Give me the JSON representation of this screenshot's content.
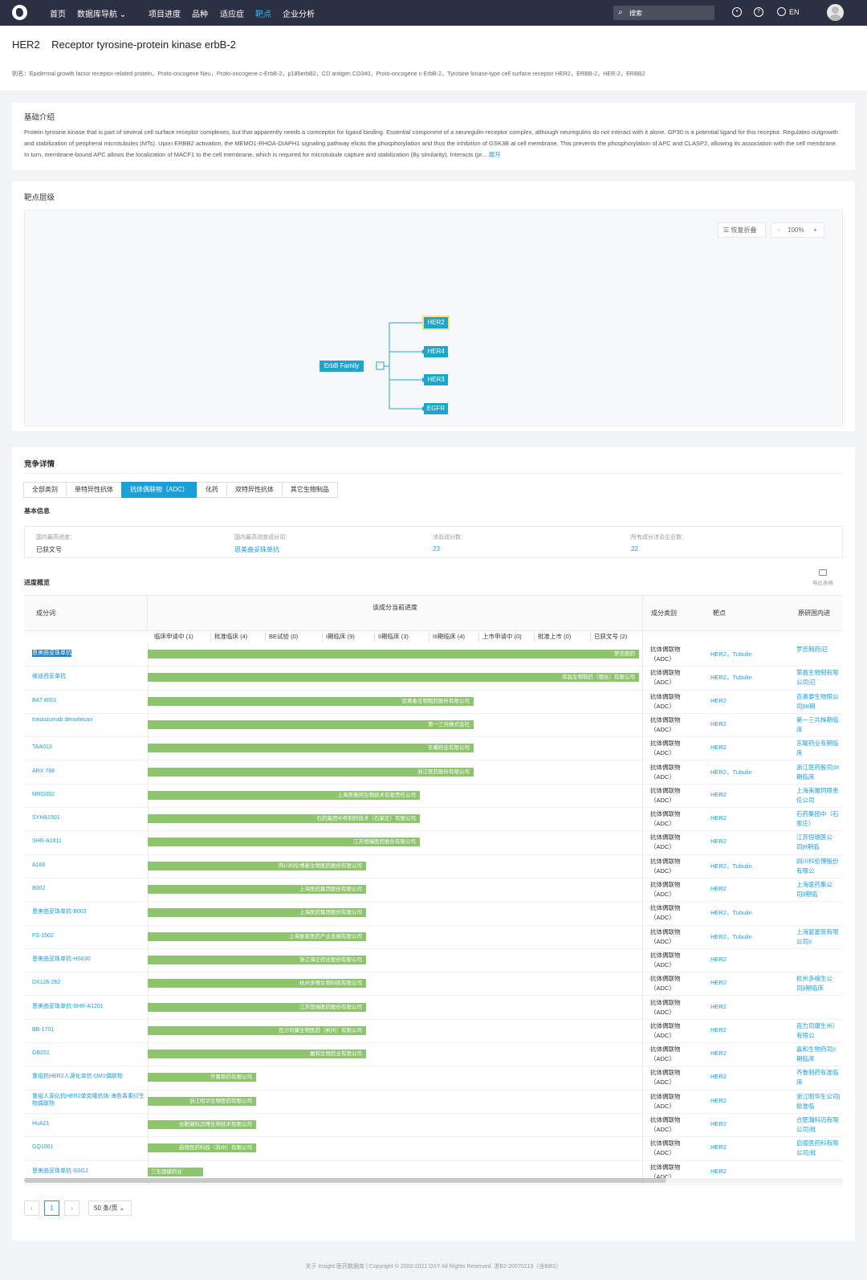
{
  "nav": {
    "items": [
      "首页",
      "数据库导航",
      "项目进度",
      "品种",
      "适应症",
      "靶点",
      "企业分析"
    ],
    "search_placeholder": "搜索",
    "lang": "EN"
  },
  "header": {
    "title": "HER2    Receptor tyrosine-protein kinase erbB-2",
    "alias": "别名：Epidermal growth factor receptor-related protein，Proto-oncogene Neu，Proto-oncogene c-ErbB-2，p185erbB2，CD antigen CD340，Proto-oncogene c-ErbB-2，Tyrosine kinase-type cell surface receptor HER2，ERBB-2，HER-2，ERBB2"
  },
  "intro": {
    "title": "基础介绍",
    "text": "Protein tyrosine kinase that is part of several cell surface receptor complexes, but that apparently needs a coreceptor for ligand binding. Essential component of a neuregulin-receptor complex, although neuregulins do not interact with it alone. GP30 is a potential ligand for this receptor. Regulates outgrowth and stabilization of peripheral microtubules (MTs). Upon ERBB2 activation, the MEMO1-RHOA-DIAPH1 signaling pathway elicits the phosphorylation and thus the inhibition of GSK3B at cell membrane. This prevents the phosphorylation of APC and CLASP2, allowing its association with the cell membrane. In turn, membrane-bound APC allows the localization of MACF1 to the cell membrane, which is required for microtubule capture and stabilization (By similarity). Interacts (pr...",
    "more": "展开"
  },
  "hierarchy": {
    "title": "靶点层级",
    "restore": "恢复折叠",
    "zoom": "100%",
    "minus": "-",
    "plus": "+",
    "root": "ErbB Family",
    "toggle": "-",
    "children": [
      "HER2",
      "HER4",
      "HER3",
      "EGFR"
    ]
  },
  "competition": {
    "title": "竞争详情",
    "tabs": [
      "全部类别",
      "单特异性抗体",
      "抗体偶联物（ADC）",
      "化药",
      "双特异性抗体",
      "其它生物制品"
    ],
    "basic_title": "基本信息",
    "info": [
      {
        "label": "国内最高进度：",
        "value": "已获文号"
      },
      {
        "label": "国内最高进度成分词：",
        "value": "恩美曲妥珠单抗"
      },
      {
        "label": "涉及成分数：",
        "value": "23"
      },
      {
        "label": "所有成分涉及企业数：",
        "value": "22"
      }
    ],
    "progress_title": "进度概览",
    "export": "导出表格",
    "headers": {
      "name": "成分词",
      "progress": "该成分当前进度",
      "type": "成分类别",
      "target": "靶点",
      "origin": "原研国内进"
    },
    "stages": [
      "临床申请中 (1)",
      "批准临床 (4)",
      "BE试验 (0)",
      "I期临床 (9)",
      "II期临床 (3)",
      "III期临床 (4)",
      "上市申请中 (0)",
      "批准上市 (0)",
      "已获文号 (2)"
    ],
    "rows": [
      {
        "name": "恩美曲妥珠单抗",
        "bar": "罗氏制药",
        "pct": 1.0,
        "target": "HER2，Tubulin",
        "org": "罗氏制药|已"
      },
      {
        "name": "维迪西妥单抗",
        "bar": "荣昌生物制药（烟台）有限公司",
        "pct": 1.0,
        "target": "HER2，Tubulin",
        "org": "荣昌生物制有限公司|已"
      },
      {
        "name": "BAT 8001",
        "bar": "百奥泰生物制药股份有限公司",
        "pct": 0.663,
        "target": "HER2",
        "org": "百奥泰生物限公司|III期"
      },
      {
        "name": "trastuzumab deruxtecan",
        "bar": "第一三共株式会社",
        "pct": 0.663,
        "target": "HER2",
        "org": "第一三共株期临床"
      },
      {
        "name": "TAA013",
        "bar": "东曜药业有限公司",
        "pct": 0.663,
        "target": "HER2",
        "org": "东曜药业有期临床"
      },
      {
        "name": "ARX 788",
        "bar": "浙江医药股份有限公司",
        "pct": 0.663,
        "target": "HER2，Tubulin",
        "org": "浙江医药股司|III期临床"
      },
      {
        "name": "MRG002",
        "bar": "上海美雅珂生物技术有限责任公司",
        "pct": 0.554,
        "target": "HER2",
        "org": "上海美雅珂限责任公司"
      },
      {
        "name": "SYHA1501",
        "bar": "石药集团中奇制药技术（石家庄）有限公司",
        "pct": 0.554,
        "target": "HER2",
        "org": "石药集团中（石家庄）"
      },
      {
        "name": "SHR-A1811",
        "bar": "江苏恒瑞医药股份有限公司",
        "pct": 0.554,
        "target": "HER2",
        "org": "江苏恒瑞医公司|II期临"
      },
      {
        "name": "A166",
        "bar": "四川科伦博泰生物医药股份有限公司",
        "pct": 0.445,
        "target": "HER2，Tubulin",
        "org": "四川科伦博股份有限公"
      },
      {
        "name": "B002",
        "bar": "上海医药集团股份有限公司",
        "pct": 0.445,
        "target": "HER2",
        "org": "上海医药集公司|I期临"
      },
      {
        "name": "恩美曲妥珠单抗-B003",
        "bar": "上海医药集团股份有限公司",
        "pct": 0.445,
        "target": "HER2，Tubulin",
        "org": ""
      },
      {
        "name": "FS-1502",
        "bar": "上海复星医药产业发展有限公司",
        "pct": 0.445,
        "target": "HER2，Tubulin",
        "org": "上海复星医有限公司|I"
      },
      {
        "name": "恩美曲妥珠单抗-HS630",
        "bar": "浙江海正药业股份有限公司",
        "pct": 0.445,
        "target": "HER2",
        "org": ""
      },
      {
        "name": "DX126-262",
        "bar": "杭州多禧生物科技有限公司",
        "pct": 0.445,
        "target": "HER2",
        "org": "杭州多禧生公司|I期临床"
      },
      {
        "name": "恩美曲妥珠单抗-SHR-A1201",
        "bar": "江苏恒瑞医药股份有限公司",
        "pct": 0.445,
        "target": "HER2",
        "org": ""
      },
      {
        "name": "BB-1701",
        "bar": "百力司康生物医药（杭州）有限公司",
        "pct": 0.445,
        "target": "HER2",
        "org": "百力司康生州）有限公"
      },
      {
        "name": "GB251",
        "bar": "嘉和生物药业有限公司",
        "pct": 0.445,
        "target": "HER2",
        "org": "嘉和生物药司|I期临床"
      },
      {
        "name": "重组抗HER2人源化单抗-DM1偶联物",
        "bar": "齐鲁制药有限公司",
        "pct": 0.221,
        "target": "HER2",
        "org": "齐鲁制药有准临床"
      },
      {
        "name": "重组人源化抗HER2单克隆抗体-海色毒素衍生物偶联物",
        "bar": "浙江昭华生物医药有限公司",
        "pct": 0.221,
        "target": "HER2",
        "org": "浙江昭华生公司|批准临"
      },
      {
        "name": "HuA21",
        "bar": "合肥瀚科迈博生物技术有限公司",
        "pct": 0.221,
        "target": "HER2",
        "org": "合肥瀚科迈有限公司|批"
      },
      {
        "name": "GQ1001",
        "bar": "启德医药科技（苏州）有限公司",
        "pct": 0.221,
        "target": "HER2",
        "org": "启德医药科有限公司|批"
      },
      {
        "name": "恩美曲妥珠单抗-SSGJ",
        "bar": "三生国健药业",
        "pct": 0.112,
        "target": "HER2",
        "org": ""
      }
    ],
    "type_line1": "抗体偶联物",
    "type_line2": "（ADC）",
    "page": "1",
    "prev": "‹",
    "next": "›",
    "page_size": "50 条/页"
  },
  "footer": "关于 Insight 医药数据库  |  Copyright © 2000-2021 DXY All Rights Reserved. 浙B2-20070219（含BBS）",
  "colors": {
    "nav_bg": "#2b3142",
    "accent": "#1b9fd8",
    "bar": "#8ec46e",
    "node": "#1fa5c9"
  }
}
